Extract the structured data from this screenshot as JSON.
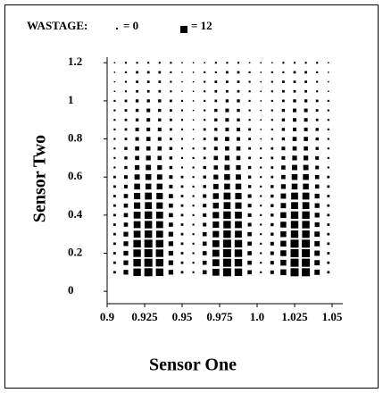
{
  "chart_data": {
    "type": "heatmap",
    "legend_title": "WASTAGE:",
    "legend": [
      {
        "label": "= 0"
      },
      {
        "label": "= 12"
      }
    ],
    "size_range": [
      0,
      12
    ],
    "xlabel": "Sensor One",
    "ylabel": "Sensor Two",
    "xlim": [
      0.9,
      1.05
    ],
    "ylim": [
      -0.065,
      1.22
    ],
    "xticks": [
      0.9,
      0.925,
      0.95,
      0.975,
      {
        "value": 1.0,
        "label": "1.0"
      },
      1.025,
      1.05
    ],
    "yticks": [
      0,
      0.2,
      0.4,
      0.6,
      0.8,
      1,
      1.2
    ],
    "color": "#000000",
    "x": [
      0.905,
      0.9125,
      0.92,
      0.9275,
      0.935,
      0.9425,
      0.95,
      0.9575,
      0.965,
      0.9725,
      0.98,
      0.9875,
      0.995,
      1.0025,
      1.01,
      1.0175,
      1.025,
      1.0325,
      1.04,
      1.0475
    ],
    "y": [
      0.1,
      0.15,
      0.2,
      0.25,
      0.3,
      0.35,
      0.4,
      0.45,
      0.5,
      0.55,
      0.6,
      0.65,
      0.7,
      0.75,
      0.8,
      0.85,
      0.9,
      0.95,
      1.0,
      1.05,
      1.1,
      1.15,
      1.2
    ],
    "values": [
      [
        2,
        6,
        11,
        12,
        11,
        6,
        2,
        1,
        5,
        10,
        12,
        11,
        5,
        1,
        4,
        8,
        12,
        12,
        7,
        2
      ],
      [
        2,
        6,
        11,
        12,
        11,
        6,
        2,
        1,
        5,
        10,
        12,
        11,
        5,
        1,
        4,
        8,
        12,
        12,
        7,
        2
      ],
      [
        2,
        6,
        11,
        12,
        11,
        6,
        2,
        1,
        5,
        10,
        12,
        11,
        5,
        1,
        4,
        8,
        12,
        12,
        7,
        2
      ],
      [
        2,
        6,
        11,
        12,
        11,
        6,
        2,
        1,
        5,
        10,
        12,
        11,
        5,
        1,
        4,
        8,
        12,
        12,
        7,
        2
      ],
      [
        2,
        6,
        10,
        11,
        10,
        6,
        2,
        1,
        5,
        9,
        11,
        10,
        5,
        1,
        3,
        8,
        11,
        11,
        7,
        2
      ],
      [
        2,
        5,
        10,
        11,
        10,
        5,
        2,
        1,
        4,
        9,
        11,
        10,
        4,
        1,
        3,
        8,
        11,
        11,
        6,
        2
      ],
      [
        2,
        5,
        10,
        11,
        10,
        5,
        2,
        1,
        4,
        9,
        11,
        10,
        4,
        1,
        3,
        8,
        11,
        11,
        6,
        2
      ],
      [
        2,
        5,
        9,
        10,
        9,
        5,
        2,
        1,
        4,
        8,
        10,
        9,
        4,
        1,
        3,
        7,
        10,
        10,
        6,
        2
      ],
      [
        2,
        5,
        9,
        10,
        9,
        5,
        2,
        1,
        4,
        8,
        10,
        9,
        4,
        1,
        3,
        7,
        10,
        10,
        6,
        2
      ],
      [
        2,
        4,
        8,
        8,
        8,
        4,
        2,
        1,
        3,
        7,
        8,
        8,
        3,
        1,
        3,
        6,
        8,
        8,
        5,
        2
      ],
      [
        2,
        4,
        7,
        8,
        7,
        4,
        2,
        1,
        3,
        6,
        8,
        7,
        3,
        1,
        2,
        5,
        8,
        8,
        5,
        2
      ],
      [
        1,
        3,
        6,
        7,
        6,
        3,
        1,
        1,
        3,
        5,
        7,
        6,
        3,
        1,
        2,
        5,
        7,
        7,
        4,
        1
      ],
      [
        1,
        3,
        5,
        6,
        5,
        3,
        1,
        1,
        2,
        5,
        6,
        5,
        2,
        1,
        2,
        4,
        6,
        6,
        4,
        1
      ],
      [
        1,
        3,
        5,
        5,
        5,
        3,
        1,
        1,
        2,
        4,
        5,
        5,
        2,
        1,
        2,
        4,
        5,
        5,
        3,
        1
      ],
      [
        1,
        2,
        4,
        5,
        4,
        2,
        1,
        0,
        2,
        4,
        5,
        4,
        2,
        0,
        1,
        3,
        5,
        5,
        3,
        1
      ],
      [
        1,
        2,
        4,
        4,
        4,
        2,
        1,
        0,
        2,
        3,
        4,
        4,
        2,
        0,
        1,
        3,
        4,
        4,
        3,
        1
      ],
      [
        1,
        2,
        3,
        4,
        3,
        2,
        1,
        0,
        1,
        3,
        4,
        3,
        1,
        0,
        1,
        3,
        4,
        4,
        2,
        1
      ],
      [
        1,
        2,
        3,
        4,
        3,
        2,
        1,
        0,
        1,
        3,
        4,
        3,
        1,
        0,
        1,
        3,
        4,
        4,
        2,
        1
      ],
      [
        1,
        2,
        3,
        3,
        3,
        2,
        1,
        0,
        1,
        2,
        3,
        3,
        1,
        0,
        1,
        2,
        3,
        3,
        2,
        1
      ],
      [
        0,
        1,
        2,
        2,
        2,
        1,
        0,
        0,
        1,
        2,
        2,
        2,
        1,
        0,
        1,
        2,
        2,
        2,
        1,
        0
      ],
      [
        0,
        1,
        2,
        2,
        2,
        1,
        0,
        0,
        1,
        2,
        2,
        2,
        1,
        0,
        1,
        2,
        2,
        2,
        1,
        0
      ],
      [
        0,
        1,
        2,
        2,
        2,
        1,
        0,
        0,
        1,
        1,
        2,
        2,
        1,
        0,
        1,
        1,
        2,
        2,
        1,
        0
      ],
      [
        0,
        1,
        1,
        1,
        1,
        1,
        0,
        0,
        0,
        1,
        1,
        1,
        0,
        0,
        0,
        1,
        1,
        1,
        1,
        0
      ]
    ]
  }
}
